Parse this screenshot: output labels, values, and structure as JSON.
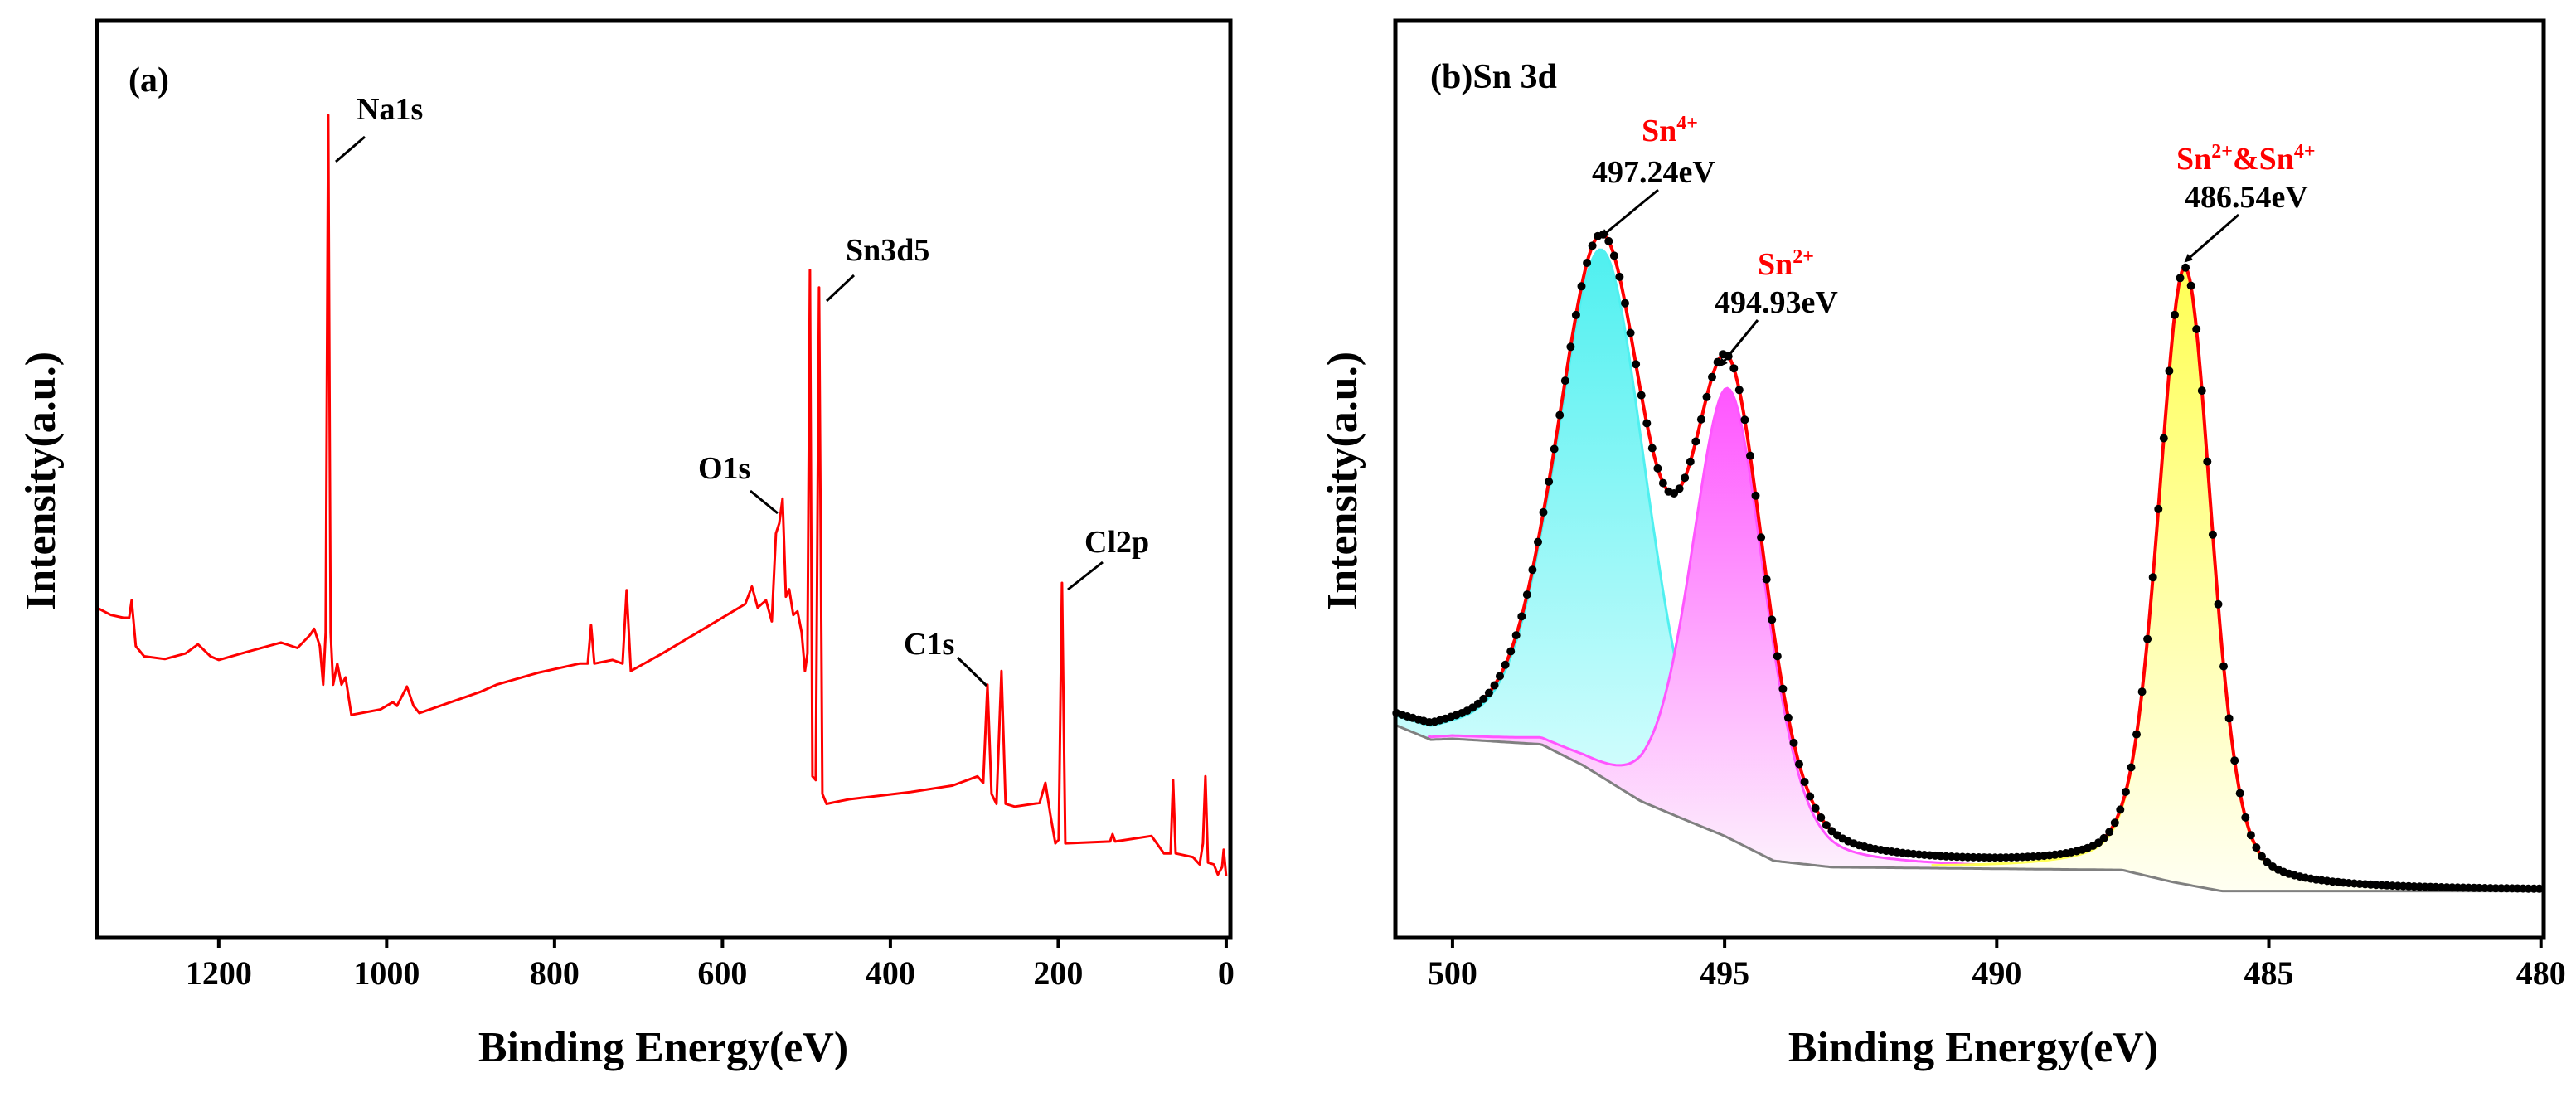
{
  "chart_data": [
    {
      "type": "line",
      "panel_label": "(a)",
      "xlabel": "Binding Energy(eV)",
      "ylabel": "Intensity(a.u.)",
      "xlim": [
        1345,
        -5
      ],
      "ylim": [
        0,
        100
      ],
      "x_reversed": true,
      "xticks": [
        1200,
        1000,
        800,
        600,
        400,
        200,
        0
      ],
      "grid": false,
      "line_color": "#ff0000",
      "series": [
        {
          "name": "survey",
          "points": [
            [
              1345.2,
              36.0
            ],
            [
              1328.4,
              35.2
            ],
            [
              1313.6,
              34.9
            ],
            [
              1306.7,
              34.9
            ],
            [
              1303.7,
              36.8
            ],
            [
              1298.8,
              31.8
            ],
            [
              1288.9,
              30.7
            ],
            [
              1264.2,
              30.4
            ],
            [
              1239.5,
              31.0
            ],
            [
              1224.7,
              32.0
            ],
            [
              1209.9,
              30.7
            ],
            [
              1200.0,
              30.3
            ],
            [
              1165.4,
              31.2
            ],
            [
              1125.9,
              32.2
            ],
            [
              1106.2,
              31.6
            ],
            [
              1091.4,
              33.0
            ],
            [
              1086.4,
              33.7
            ],
            [
              1079.5,
              31.8
            ],
            [
              1075.6,
              27.6
            ],
            [
              1072.6,
              33.3
            ],
            [
              1069.6,
              89.7
            ],
            [
              1066.7,
              33.3
            ],
            [
              1063.7,
              27.6
            ],
            [
              1058.8,
              29.9
            ],
            [
              1053.8,
              27.6
            ],
            [
              1048.9,
              28.4
            ],
            [
              1042.0,
              24.3
            ],
            [
              1007.4,
              24.9
            ],
            [
              992.6,
              25.7
            ],
            [
              987.7,
              25.3
            ],
            [
              975.8,
              27.4
            ],
            [
              968.0,
              25.3
            ],
            [
              961.0,
              24.5
            ],
            [
              888.9,
              26.8
            ],
            [
              869.1,
              27.6
            ],
            [
              819.8,
              28.9
            ],
            [
              770.4,
              29.9
            ],
            [
              760.5,
              29.9
            ],
            [
              756.5,
              34.1
            ],
            [
              752.6,
              29.9
            ],
            [
              730.9,
              30.3
            ],
            [
              719.0,
              29.9
            ],
            [
              714.1,
              37.9
            ],
            [
              709.1,
              29.1
            ],
            [
              671.6,
              31.0
            ],
            [
              622.2,
              33.7
            ],
            [
              572.8,
              36.4
            ],
            [
              564.9,
              38.3
            ],
            [
              558.0,
              36.0
            ],
            [
              548.1,
              36.8
            ],
            [
              541.2,
              34.5
            ],
            [
              536.3,
              44.1
            ],
            [
              532.3,
              45.2
            ],
            [
              528.4,
              47.9
            ],
            [
              524.4,
              37.2
            ],
            [
              520.5,
              38.0
            ],
            [
              515.6,
              35.2
            ],
            [
              510.6,
              35.6
            ],
            [
              505.7,
              33.3
            ],
            [
              501.7,
              29.1
            ],
            [
              498.8,
              31.0
            ],
            [
              495.8,
              72.8
            ],
            [
              492.8,
              17.6
            ],
            [
              488.9,
              17.2
            ],
            [
              484.9,
              70.9
            ],
            [
              481.0,
              15.7
            ],
            [
              476.0,
              14.6
            ],
            [
              449.4,
              15.1
            ],
            [
              375.3,
              15.9
            ],
            [
              325.9,
              16.6
            ],
            [
              296.3,
              17.6
            ],
            [
              289.4,
              16.9
            ],
            [
              284.4,
              27.6
            ],
            [
              279.5,
              15.7
            ],
            [
              273.6,
              14.6
            ],
            [
              267.7,
              29.1
            ],
            [
              262.7,
              14.6
            ],
            [
              251.9,
              14.3
            ],
            [
              222.2,
              14.7
            ],
            [
              215.3,
              16.9
            ],
            [
              209.4,
              13.4
            ],
            [
              203.5,
              10.3
            ],
            [
              199.5,
              10.7
            ],
            [
              195.6,
              38.7
            ],
            [
              191.6,
              10.3
            ],
            [
              138.3,
              10.5
            ],
            [
              135.3,
              11.3
            ],
            [
              132.3,
              10.5
            ],
            [
              88.9,
              11.1
            ],
            [
              74.1,
              9.2
            ],
            [
              66.2,
              9.2
            ],
            [
              63.2,
              17.2
            ],
            [
              60.2,
              9.2
            ],
            [
              39.5,
              8.8
            ],
            [
              31.6,
              8.0
            ],
            [
              27.7,
              10.3
            ],
            [
              24.7,
              17.6
            ],
            [
              21.7,
              8.2
            ],
            [
              14.8,
              8.0
            ],
            [
              9.9,
              6.9
            ],
            [
              4.9,
              7.7
            ],
            [
              3.0,
              9.6
            ],
            [
              0.0,
              6.7
            ]
          ]
        }
      ],
      "annotations": [
        {
          "text": "Na1s",
          "x": 1069.6,
          "y": 89.7
        },
        {
          "text": "Sn3d5",
          "x": 484.9,
          "y": 70.9
        },
        {
          "text": "O1s",
          "x": 530,
          "y": 46
        },
        {
          "text": "C1s",
          "x": 284.4,
          "y": 27.6
        },
        {
          "text": "Cl2p",
          "x": 195.6,
          "y": 38.7
        }
      ]
    },
    {
      "type": "line",
      "panel_label": "(b)Sn 3d",
      "xlabel": "Binding Energy(eV)",
      "ylabel": "Intensity(a.u.)",
      "xlim": [
        501.05,
        479.95
      ],
      "ylim": [
        0,
        100
      ],
      "x_reversed": true,
      "xticks": [
        500,
        495,
        490,
        485,
        480
      ],
      "grid": false,
      "data_step_eV": 0.1,
      "colors": {
        "envelope": "#ff0000",
        "background": "#808080",
        "points": "#000000"
      },
      "background": [
        [
          501.05,
          23.2
        ],
        [
          500.4,
          21.6
        ],
        [
          500,
          21.7
        ],
        [
          498.37,
          21.1
        ],
        [
          497.6,
          18.8
        ],
        [
          496.54,
          14.9
        ],
        [
          495.78,
          13.0
        ],
        [
          495.0,
          11.1
        ],
        [
          494.1,
          8.4
        ],
        [
          493.03,
          7.7
        ],
        [
          487.7,
          7.4
        ],
        [
          486.78,
          6.1
        ],
        [
          485.87,
          5.1
        ],
        [
          479.95,
          5.1
        ]
      ],
      "components": [
        {
          "name": "Sn4+",
          "center": 497.24,
          "amplitude": 57.5,
          "fwhm": 1.95,
          "lorentz_fraction": 0.3,
          "color": "#4ff0f0",
          "fill_light": "#e8ffff"
        },
        {
          "name": "Sn2+",
          "center": 494.93,
          "amplitude": 49,
          "fwhm": 1.6,
          "lorentz_fraction": 0.3,
          "color": "#ff55ff",
          "fill_light": "#fdf0fd"
        },
        {
          "name": "Sn2+&Sn4+",
          "center": 486.54,
          "amplitude": 67,
          "fwhm": 1.15,
          "lorentz_fraction": 0.3,
          "color": "#ffff55",
          "fill_light": "#fffff2"
        }
      ],
      "annotations": [
        {
          "label": [
            {
              "t": "Sn"
            },
            {
              "t": "4+",
              "sup": true
            }
          ],
          "value": "497.24eV",
          "x": 497.24
        },
        {
          "label": [
            {
              "t": "Sn"
            },
            {
              "t": "2+",
              "sup": true
            }
          ],
          "value": "494.93eV",
          "x": 494.93
        },
        {
          "label": [
            {
              "t": "Sn"
            },
            {
              "t": "2+",
              "sup": true
            },
            {
              "t": "&Sn"
            },
            {
              "t": "4+",
              "sup": true
            }
          ],
          "value": "486.54eV",
          "x": 486.54
        }
      ]
    }
  ]
}
